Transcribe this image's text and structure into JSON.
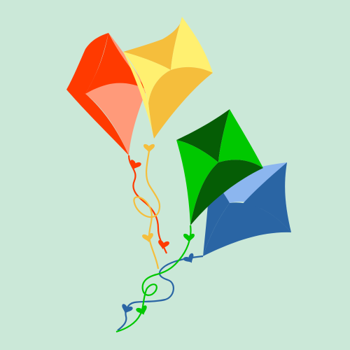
{
  "scene": {
    "background": "#cbe8d8",
    "kites": [
      {
        "name": "red-kite",
        "colors": {
          "dark": "#ff3a00",
          "light": "#ff9a7a"
        },
        "string": "#ff3a00",
        "bow": "#ff3a00"
      },
      {
        "name": "yellow-kite",
        "colors": {
          "dark": "#f5be3c",
          "light": "#fff070"
        },
        "string": "#f5be3c",
        "bow": "#f5be3c"
      },
      {
        "name": "blue-kite",
        "colors": {
          "dark": "#2a65a4",
          "light": "#8cb6ef"
        },
        "string": "#2a65a4",
        "bow": "#2a65a4"
      },
      {
        "name": "green-kite",
        "colors": {
          "dark": "#055d05",
          "light": "#00c800"
        },
        "string": "#00c800",
        "bow": "#00c800"
      }
    ]
  }
}
